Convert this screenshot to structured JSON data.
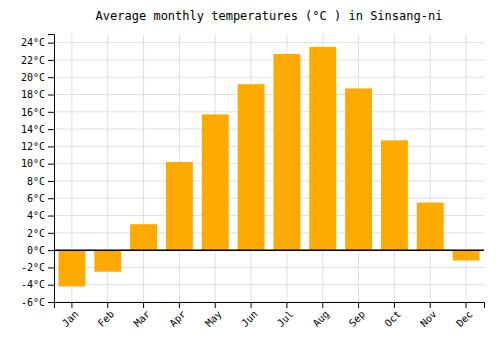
{
  "chart_data": {
    "type": "bar",
    "title": "Average monthly temperatures (°C ) in Sinsang-ni",
    "categories": [
      "Jan",
      "Feb",
      "Mar",
      "Apr",
      "May",
      "Jun",
      "Jul",
      "Aug",
      "Sep",
      "Oct",
      "Nov",
      "Dec"
    ],
    "values": [
      -4.2,
      -2.5,
      3.0,
      10.2,
      15.7,
      19.2,
      22.7,
      23.5,
      18.7,
      12.7,
      5.5,
      -1.2
    ],
    "color": "#FFAA00",
    "ylim": [
      -6,
      25
    ],
    "yticks": [
      {
        "value": -6,
        "label": "-6°C"
      },
      {
        "value": -4,
        "label": "-4°C"
      },
      {
        "value": -2,
        "label": "-2°C"
      },
      {
        "value": 0,
        "label": "0°C"
      },
      {
        "value": 2,
        "label": "2°C"
      },
      {
        "value": 4,
        "label": "4°C"
      },
      {
        "value": 6,
        "label": "6°C"
      },
      {
        "value": 8,
        "label": "8°C"
      },
      {
        "value": 10,
        "label": "10°C"
      },
      {
        "value": 12,
        "label": "12°C"
      },
      {
        "value": 14,
        "label": "14°C"
      },
      {
        "value": 16,
        "label": "16°C"
      },
      {
        "value": 18,
        "label": "18°C"
      },
      {
        "value": 20,
        "label": "20°C"
      },
      {
        "value": 22,
        "label": "22°C"
      },
      {
        "value": 24,
        "label": "24°C"
      }
    ],
    "grid": true
  }
}
